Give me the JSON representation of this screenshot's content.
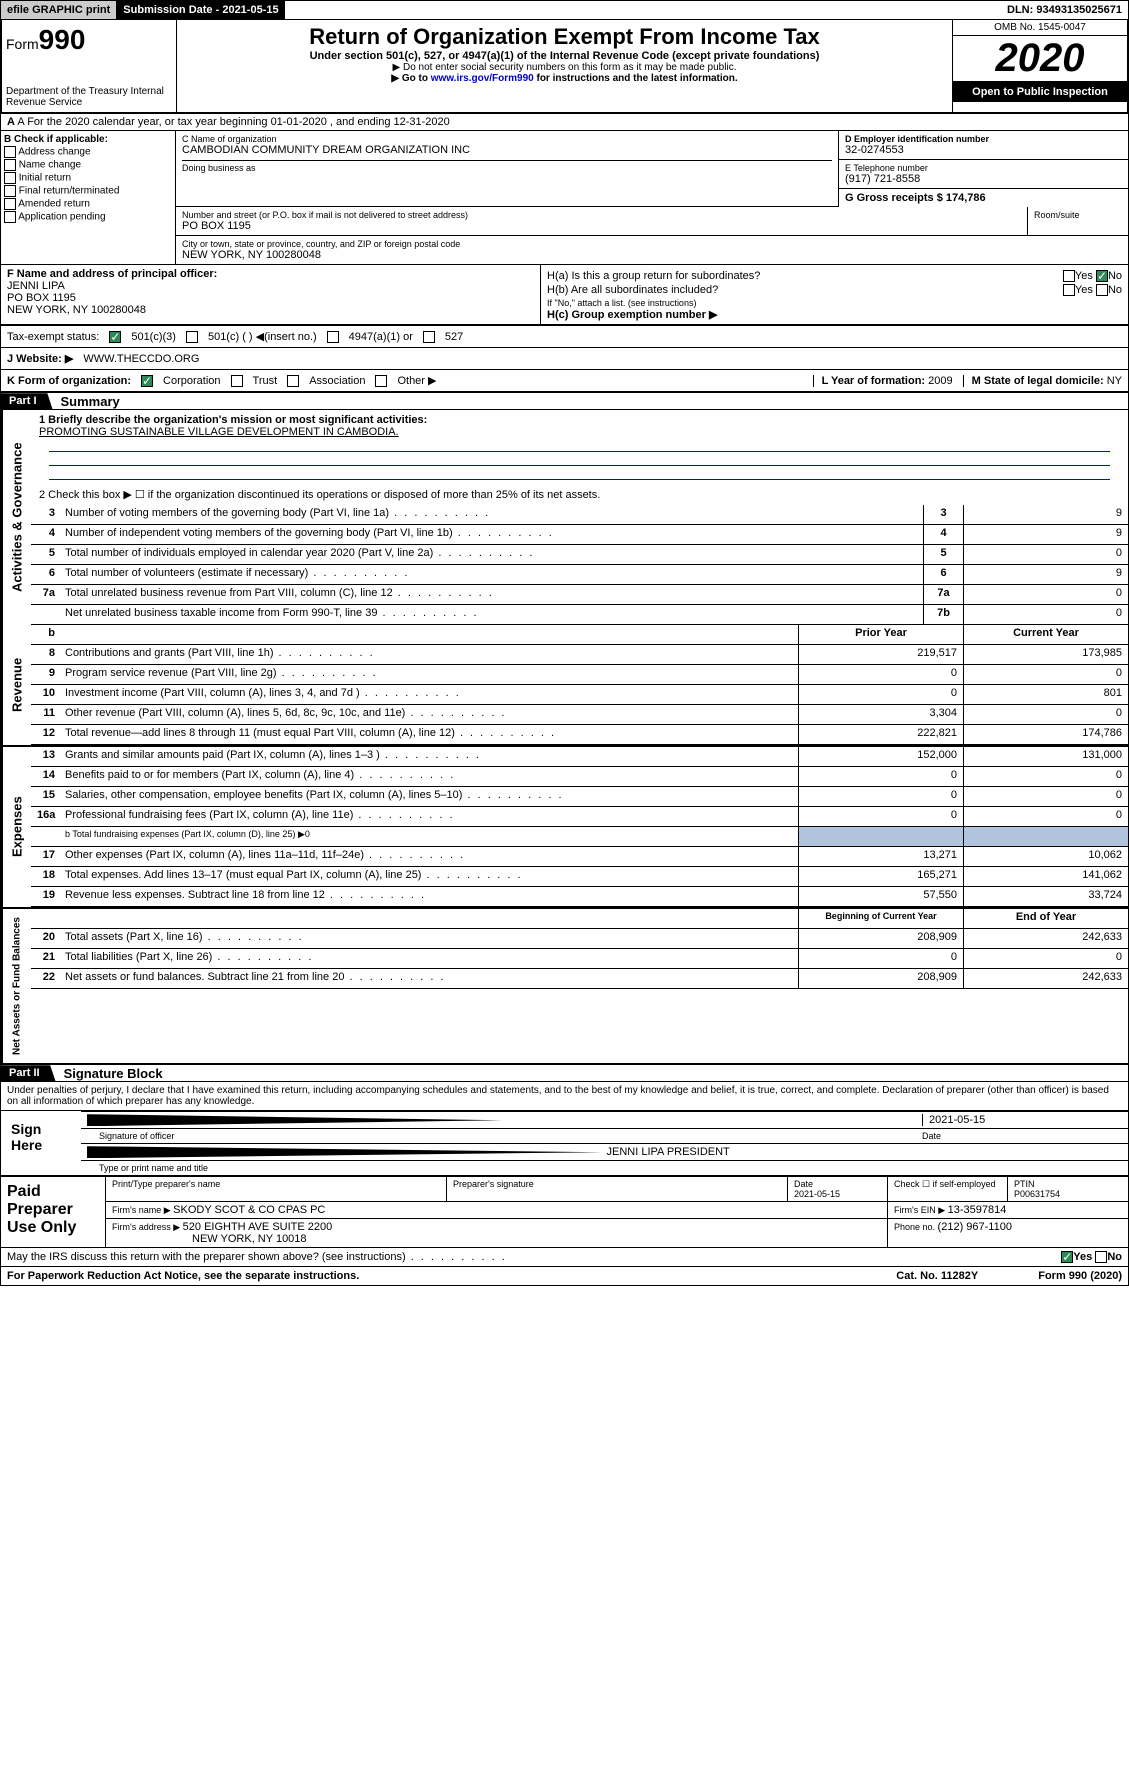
{
  "topbar": {
    "efile": "efile GRAPHIC print",
    "sub_label": "Submission Date - ",
    "sub_date": "2021-05-15",
    "dln": "DLN: 93493135025671"
  },
  "header": {
    "form_prefix": "Form",
    "form_num": "990",
    "dept": "Department of the Treasury\nInternal Revenue Service",
    "title": "Return of Organization Exempt From Income Tax",
    "subtitle": "Under section 501(c), 527, or 4947(a)(1) of the Internal Revenue Code (except private foundations)",
    "note1": "▶ Do not enter social security numbers on this form as it may be made public.",
    "note2_pre": "▶ Go to ",
    "note2_link": "www.irs.gov/Form990",
    "note2_post": " for instructions and the latest information.",
    "omb": "OMB No. 1545-0047",
    "year": "2020",
    "inspection": "Open to Public Inspection"
  },
  "rowA": {
    "text": "A For the 2020 calendar year, or tax year beginning 01-01-2020   , and ending 12-31-2020"
  },
  "colB": {
    "label": "B Check if applicable:",
    "opts": [
      "Address change",
      "Name change",
      "Initial return",
      "Final return/terminated",
      "Amended return",
      "Application pending"
    ]
  },
  "colC": {
    "name_label": "C Name of organization",
    "name": "CAMBODIAN COMMUNITY DREAM ORGANIZATION INC",
    "dba_label": "Doing business as",
    "addr_label": "Number and street (or P.O. box if mail is not delivered to street address)",
    "room_label": "Room/suite",
    "addr": "PO BOX 1195",
    "city_label": "City or town, state or province, country, and ZIP or foreign postal code",
    "city": "NEW YORK, NY  100280048"
  },
  "colD": {
    "ein_label": "D Employer identification number",
    "ein": "32-0274553",
    "phone_label": "E Telephone number",
    "phone": "(917) 721-8558",
    "gross_label": "G Gross receipts $ ",
    "gross": "174,786"
  },
  "colF": {
    "label": "F  Name and address of principal officer:",
    "name": "JENNI LIPA",
    "addr1": "PO BOX 1195",
    "addr2": "NEW YORK, NY  100280048"
  },
  "colH": {
    "a": "H(a)  Is this a group return for subordinates?",
    "b": "H(b)  Are all subordinates included?",
    "b_note": "If \"No,\" attach a list. (see instructions)",
    "c": "H(c)  Group exemption number ▶"
  },
  "tax_status": {
    "label": "Tax-exempt status:",
    "o1": "501(c)(3)",
    "o2": "501(c) (  ) ◀(insert no.)",
    "o3": "4947(a)(1) or",
    "o4": "527"
  },
  "website": {
    "label": "J   Website: ▶",
    "url": "WWW.THECCDO.ORG"
  },
  "rowK": {
    "label": "K Form of organization:",
    "opts": [
      "Corporation",
      "Trust",
      "Association",
      "Other ▶"
    ],
    "l_label": "L Year of formation: ",
    "l_val": "2009",
    "m_label": "M State of legal domicile: ",
    "m_val": "NY"
  },
  "part1": {
    "tag": "Part I",
    "title": "Summary"
  },
  "summary": {
    "l1_label": "1  Briefly describe the organization's mission or most significant activities:",
    "l1_text": "PROMOTING SUSTAINABLE VILLAGE DEVELOPMENT IN CAMBODIA.",
    "l2": "2   Check this box ▶ ☐  if the organization discontinued its operations or disposed of more than 25% of its net assets.",
    "lines": [
      {
        "n": "3",
        "d": "Number of voting members of the governing body (Part VI, line 1a)",
        "c": "3",
        "v": "9"
      },
      {
        "n": "4",
        "d": "Number of independent voting members of the governing body (Part VI, line 1b)",
        "c": "4",
        "v": "9"
      },
      {
        "n": "5",
        "d": "Total number of individuals employed in calendar year 2020 (Part V, line 2a)",
        "c": "5",
        "v": "0"
      },
      {
        "n": "6",
        "d": "Total number of volunteers (estimate if necessary)",
        "c": "6",
        "v": "9"
      },
      {
        "n": "7a",
        "d": "Total unrelated business revenue from Part VIII, column (C), line 12",
        "c": "7a",
        "v": "0"
      },
      {
        "n": "",
        "d": "Net unrelated business taxable income from Form 990-T, line 39",
        "c": "7b",
        "v": "0"
      }
    ]
  },
  "revenue": {
    "hdr_prior": "Prior Year",
    "hdr_curr": "Current Year",
    "rows": [
      {
        "n": "8",
        "d": "Contributions and grants (Part VIII, line 1h)",
        "p": "219,517",
        "c": "173,985"
      },
      {
        "n": "9",
        "d": "Program service revenue (Part VIII, line 2g)",
        "p": "0",
        "c": "0"
      },
      {
        "n": "10",
        "d": "Investment income (Part VIII, column (A), lines 3, 4, and 7d )",
        "p": "0",
        "c": "801"
      },
      {
        "n": "11",
        "d": "Other revenue (Part VIII, column (A), lines 5, 6d, 8c, 9c, 10c, and 11e)",
        "p": "3,304",
        "c": "0"
      },
      {
        "n": "12",
        "d": "Total revenue—add lines 8 through 11 (must equal Part VIII, column (A), line 12)",
        "p": "222,821",
        "c": "174,786"
      }
    ]
  },
  "expenses": {
    "rows": [
      {
        "n": "13",
        "d": "Grants and similar amounts paid (Part IX, column (A), lines 1–3 )",
        "p": "152,000",
        "c": "131,000"
      },
      {
        "n": "14",
        "d": "Benefits paid to or for members (Part IX, column (A), line 4)",
        "p": "0",
        "c": "0"
      },
      {
        "n": "15",
        "d": "Salaries, other compensation, employee benefits (Part IX, column (A), lines 5–10)",
        "p": "0",
        "c": "0"
      },
      {
        "n": "16a",
        "d": "Professional fundraising fees (Part IX, column (A), line 11e)",
        "p": "0",
        "c": "0"
      }
    ],
    "l16b": "b  Total fundraising expenses (Part IX, column (D), line 25) ▶0",
    "rows2": [
      {
        "n": "17",
        "d": "Other expenses (Part IX, column (A), lines 11a–11d, 11f–24e)",
        "p": "13,271",
        "c": "10,062"
      },
      {
        "n": "18",
        "d": "Total expenses. Add lines 13–17 (must equal Part IX, column (A), line 25)",
        "p": "165,271",
        "c": "141,062"
      },
      {
        "n": "19",
        "d": "Revenue less expenses. Subtract line 18 from line 12",
        "p": "57,550",
        "c": "33,724"
      }
    ]
  },
  "netassets": {
    "hdr_beg": "Beginning of Current Year",
    "hdr_end": "End of Year",
    "rows": [
      {
        "n": "20",
        "d": "Total assets (Part X, line 16)",
        "p": "208,909",
        "c": "242,633"
      },
      {
        "n": "21",
        "d": "Total liabilities (Part X, line 26)",
        "p": "0",
        "c": "0"
      },
      {
        "n": "22",
        "d": "Net assets or fund balances. Subtract line 21 from line 20",
        "p": "208,909",
        "c": "242,633"
      }
    ]
  },
  "part2": {
    "tag": "Part II",
    "title": "Signature Block"
  },
  "perjury": "Under penalties of perjury, I declare that I have examined this return, including accompanying schedules and statements, and to the best of my knowledge and belief, it is true, correct, and complete. Declaration of preparer (other than officer) is based on all information of which preparer has any knowledge.",
  "sign": {
    "here": "Sign Here",
    "sig_label": "Signature of officer",
    "date": "2021-05-15",
    "date_label": "Date",
    "name": "JENNI LIPA PRESIDENT",
    "name_label": "Type or print name and title"
  },
  "paid": {
    "label": "Paid Preparer Use Only",
    "h1": "Print/Type preparer's name",
    "h2": "Preparer's signature",
    "h3": "Date",
    "h3v": "2021-05-15",
    "h4": "Check ☐ if self-employed",
    "h5": "PTIN",
    "h5v": "P00631754",
    "firm_label": "Firm's name    ▶ ",
    "firm": "SKODY SCOT & CO CPAS PC",
    "ein_label": "Firm's EIN ▶ ",
    "ein": "13-3597814",
    "addr_label": "Firm's address ▶ ",
    "addr": "520 EIGHTH AVE SUITE 2200",
    "addr2": "NEW YORK, NY  10018",
    "phone_label": "Phone no. ",
    "phone": "(212) 967-1100"
  },
  "footer": {
    "discuss": "May the IRS discuss this return with the preparer shown above? (see instructions)",
    "paperwork": "For Paperwork Reduction Act Notice, see the separate instructions.",
    "cat": "Cat. No. 11282Y",
    "form": "Form 990 (2020)"
  },
  "yn": {
    "yes": "Yes",
    "no": "No"
  }
}
